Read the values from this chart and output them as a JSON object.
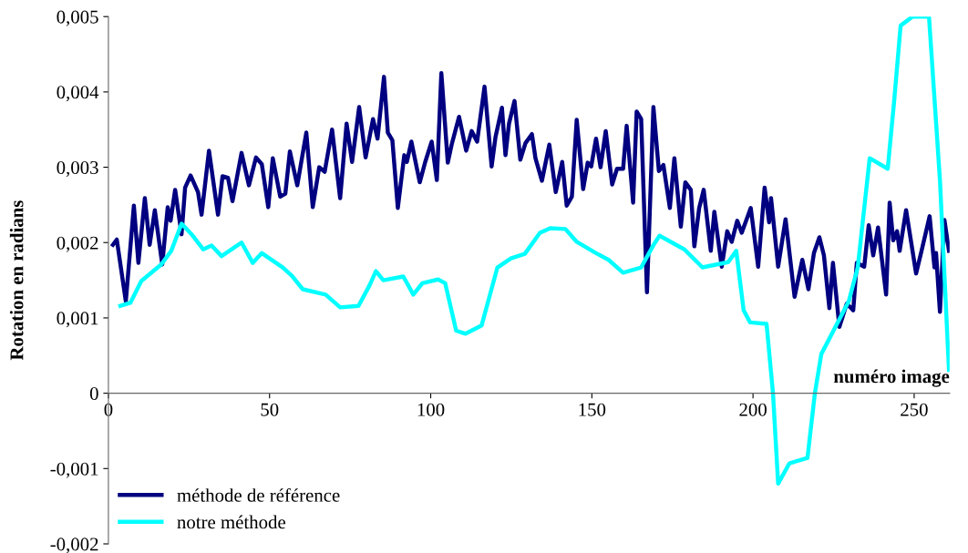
{
  "chart_data": {
    "type": "line",
    "xlabel": "numéro image",
    "ylabel": "Rotation en radians",
    "xlim": [
      0,
      261
    ],
    "xticks": [
      0,
      50,
      100,
      150,
      200,
      250
    ],
    "ylim": [
      -0.002,
      0.005
    ],
    "yticks": [
      {
        "value": -0.002,
        "label": "-0,002"
      },
      {
        "value": -0.001,
        "label": "-0,001"
      },
      0,
      {
        "value": 0.001,
        "label": "0,001"
      },
      {
        "value": 0.002,
        "label": "0,002"
      },
      {
        "value": 0.003,
        "label": "0,003"
      },
      {
        "value": 0.004,
        "label": "0,004"
      },
      {
        "value": 0.005,
        "label": "0,005"
      }
    ],
    "legend": "bottom left",
    "series": [
      {
        "name": "méthode de référence",
        "color": "#000080",
        "x": [
          1.4,
          2.6,
          5.4,
          7.9,
          9.3,
          11.3,
          12.8,
          14.4,
          16.7,
          18.4,
          19.3,
          20.7,
          22.7,
          23.8,
          25.5,
          27.8,
          28.9,
          31.2,
          34.0,
          35.4,
          37.1,
          38.5,
          41.3,
          43.6,
          45.8,
          47.6,
          49.6,
          51.0,
          53.3,
          54.9,
          56.3,
          58.6,
          61.4,
          63.4,
          65.4,
          67.1,
          69.4,
          71.9,
          73.9,
          75.6,
          77.8,
          79.8,
          82.1,
          83.5,
          85.5,
          86.7,
          88.1,
          89.8,
          91.8,
          92.6,
          94.0,
          96.6,
          98.3,
          100.3,
          101.9,
          103.3,
          105.3,
          106.5,
          108.8,
          111.0,
          112.7,
          114.4,
          116.7,
          118.9,
          120.1,
          122.1,
          123.2,
          124.3,
          126.0,
          127.8,
          129.4,
          131.4,
          132.5,
          134.5,
          136.8,
          138.8,
          140.8,
          142.2,
          143.8,
          145.3,
          147.3,
          148.7,
          149.8,
          151.3,
          152.7,
          154.3,
          156.3,
          157.8,
          159.7,
          160.8,
          162.8,
          163.9,
          165.3,
          167.1,
          169.1,
          170.8,
          172.2,
          174.2,
          175.6,
          177.6,
          179.0,
          180.7,
          181.8,
          183.3,
          184.7,
          186.9,
          188.0,
          190.3,
          192.0,
          193.4,
          195.1,
          196.5,
          199.3,
          201.6,
          203.6,
          205.0,
          205.6,
          207.8,
          210.1,
          212.9,
          215.3,
          217.2,
          218.9,
          220.6,
          222.0,
          223.7,
          224.8,
          226.8,
          229.1,
          231.1,
          232.2,
          234.5,
          235.9,
          237.3,
          238.8,
          241.3,
          242.4,
          243.5,
          244.7,
          245.5,
          247.5,
          250.6,
          252.3,
          254.8,
          256.3,
          256.8,
          258.0,
          259.4,
          260.8
        ],
        "values": [
          0.00197,
          0.00204,
          0.00122,
          0.00249,
          0.00173,
          0.00259,
          0.00197,
          0.00243,
          0.00171,
          0.00247,
          0.00229,
          0.0027,
          0.00211,
          0.00273,
          0.00289,
          0.00267,
          0.00237,
          0.00322,
          0.00237,
          0.00288,
          0.00286,
          0.00255,
          0.00319,
          0.00276,
          0.00313,
          0.00304,
          0.00247,
          0.00312,
          0.00261,
          0.00265,
          0.00321,
          0.00276,
          0.00346,
          0.00247,
          0.003,
          0.00294,
          0.0035,
          0.00259,
          0.00358,
          0.00307,
          0.0038,
          0.00313,
          0.00364,
          0.00338,
          0.0042,
          0.00346,
          0.00336,
          0.00246,
          0.00316,
          0.00307,
          0.00334,
          0.0028,
          0.00307,
          0.00334,
          0.00283,
          0.00425,
          0.00306,
          0.0033,
          0.00367,
          0.00322,
          0.00348,
          0.00334,
          0.00407,
          0.00301,
          0.0034,
          0.00379,
          0.00316,
          0.00358,
          0.00388,
          0.0031,
          0.00332,
          0.00344,
          0.00312,
          0.00282,
          0.0033,
          0.00267,
          0.00307,
          0.00249,
          0.00261,
          0.00363,
          0.00271,
          0.00306,
          0.00301,
          0.00338,
          0.003,
          0.00348,
          0.00277,
          0.00298,
          0.00298,
          0.00355,
          0.00253,
          0.00374,
          0.00364,
          0.00134,
          0.0038,
          0.00295,
          0.00303,
          0.00246,
          0.00312,
          0.00221,
          0.0028,
          0.0027,
          0.00195,
          0.00246,
          0.0027,
          0.00189,
          0.00241,
          0.00168,
          0.00215,
          0.00201,
          0.00229,
          0.00213,
          0.00246,
          0.00168,
          0.00273,
          0.00227,
          0.00259,
          0.00168,
          0.00231,
          0.00128,
          0.00177,
          0.00138,
          0.00186,
          0.00207,
          0.00183,
          0.00113,
          0.00173,
          0.00088,
          0.00119,
          0.0011,
          0.00173,
          0.00168,
          0.00223,
          0.00183,
          0.0022,
          0.00131,
          0.00253,
          0.00203,
          0.00215,
          0.00189,
          0.00243,
          0.00159,
          0.00189,
          0.00235,
          0.00167,
          0.00186,
          0.00108,
          0.0023,
          0.00189
        ]
      },
      {
        "name": "notre méthode",
        "color": "#00ffff",
        "x": [
          3.7,
          6.8,
          10.2,
          16.4,
          19.5,
          22.7,
          25.8,
          29.4,
          32.0,
          35.1,
          41.3,
          44.8,
          47.6,
          54.1,
          56.9,
          60.3,
          67.4,
          71.9,
          77.6,
          81.0,
          83.0,
          85.3,
          91.5,
          94.6,
          97.4,
          102.3,
          104.5,
          107.9,
          110.8,
          115.8,
          120.7,
          124.9,
          129.2,
          133.9,
          137.1,
          141.8,
          145.3,
          151.3,
          155.2,
          159.7,
          165.3,
          169.3,
          171.0,
          178.7,
          184.3,
          192.3,
          194.8,
          197.1,
          199.1,
          204.2,
          206.2,
          207.8,
          211.3,
          216.9,
          219.2,
          221.2,
          229.7,
          232.5,
          236.2,
          241.8,
          243.8,
          245.8,
          249.5,
          254.6,
          258.0,
          260.8
        ],
        "values": [
          0.00116,
          0.0012,
          0.00149,
          0.00171,
          0.00189,
          0.00225,
          0.00211,
          0.00191,
          0.00196,
          0.00182,
          0.002,
          0.00173,
          0.00186,
          0.00167,
          0.00156,
          0.00138,
          0.00131,
          0.00114,
          0.00116,
          0.00143,
          0.00162,
          0.0015,
          0.00155,
          0.00131,
          0.00146,
          0.00151,
          0.00146,
          0.00083,
          0.00079,
          0.0009,
          0.00167,
          0.00179,
          0.00185,
          0.00213,
          0.00219,
          0.00218,
          0.00201,
          0.00186,
          0.00177,
          0.0016,
          0.00167,
          0.00198,
          0.00209,
          0.00191,
          0.00167,
          0.00174,
          0.00189,
          0.0011,
          0.00094,
          0.00092,
          0,
          -0.0012,
          -0.00093,
          -0.00086,
          0,
          0.00052,
          0.00122,
          0.00167,
          0.00312,
          0.00298,
          0.00388,
          0.00488,
          0.005,
          0.005,
          0.00283,
          0.00031
        ]
      }
    ]
  }
}
